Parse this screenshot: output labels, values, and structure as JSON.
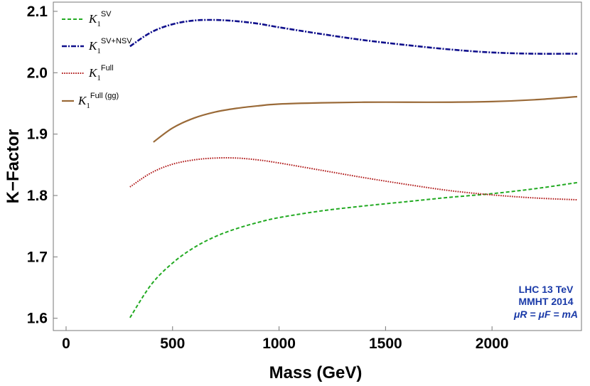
{
  "chart_data": {
    "type": "line",
    "xlabel": "Mass (GeV)",
    "ylabel": "K−Factor",
    "xlim": [
      -60,
      2420
    ],
    "ylim": [
      1.58,
      2.115
    ],
    "x_ticks": [
      0,
      500,
      1000,
      1500,
      2000
    ],
    "y_ticks": [
      1.6,
      1.7,
      1.8,
      1.9,
      2.0,
      2.1
    ],
    "y_tick_labels": [
      "1.6",
      "1.7",
      "1.8",
      "1.9",
      "2.0",
      "2.1"
    ],
    "grid": false,
    "legend_position": "top-left",
    "series": [
      {
        "name": "K1^SV",
        "legend_main": "K",
        "legend_sub": "1",
        "legend_sup": "SV",
        "color": "#22aa22",
        "dash": "5,3",
        "width": 2,
        "x": [
          300,
          400,
          500,
          600,
          700,
          800,
          900,
          1000,
          1200,
          1400,
          1600,
          1800,
          2000,
          2200,
          2400
        ],
        "y": [
          1.601,
          1.655,
          1.69,
          1.715,
          1.733,
          1.746,
          1.756,
          1.764,
          1.775,
          1.783,
          1.79,
          1.797,
          1.803,
          1.811,
          1.821
        ]
      },
      {
        "name": "K1^SV+NSV",
        "legend_main": "K",
        "legend_sub": "1",
        "legend_sup": "SV+NSV",
        "color": "#10108c",
        "dash": "7,2,2,2",
        "width": 2.6,
        "x": [
          300,
          400,
          500,
          600,
          700,
          800,
          900,
          1000,
          1200,
          1400,
          1600,
          1800,
          2000,
          2200,
          2400
        ],
        "y": [
          2.043,
          2.066,
          2.079,
          2.085,
          2.086,
          2.084,
          2.08,
          2.074,
          2.063,
          2.053,
          2.045,
          2.038,
          2.033,
          2.031,
          2.031
        ]
      },
      {
        "name": "K1^Full",
        "legend_main": "K",
        "legend_sub": "1",
        "legend_sup": "Full",
        "color": "#b01818",
        "dash": "1.6,1.6",
        "width": 2,
        "x": [
          300,
          400,
          500,
          600,
          700,
          800,
          900,
          1000,
          1200,
          1400,
          1600,
          1800,
          2000,
          2200,
          2400
        ],
        "y": [
          1.814,
          1.837,
          1.851,
          1.858,
          1.861,
          1.861,
          1.858,
          1.853,
          1.841,
          1.829,
          1.818,
          1.808,
          1.801,
          1.796,
          1.793
        ]
      },
      {
        "name": "K1^Full(gg)",
        "legend_main": "K",
        "legend_sub": "1",
        "legend_sup": "Full (gg)",
        "color": "#9a6a38",
        "dash": "",
        "width": 2.2,
        "x": [
          410,
          500,
          600,
          700,
          800,
          900,
          1000,
          1200,
          1400,
          1600,
          1800,
          2000,
          2200,
          2400
        ],
        "y": [
          1.887,
          1.91,
          1.926,
          1.936,
          1.942,
          1.946,
          1.949,
          1.951,
          1.952,
          1.952,
          1.952,
          1.953,
          1.956,
          1.961
        ]
      }
    ],
    "annotation": {
      "color": "#1a3aa8",
      "line1": "LHC 13 TeV",
      "line2": "MMHT 2014",
      "line3": "μR = μF = mA"
    }
  }
}
